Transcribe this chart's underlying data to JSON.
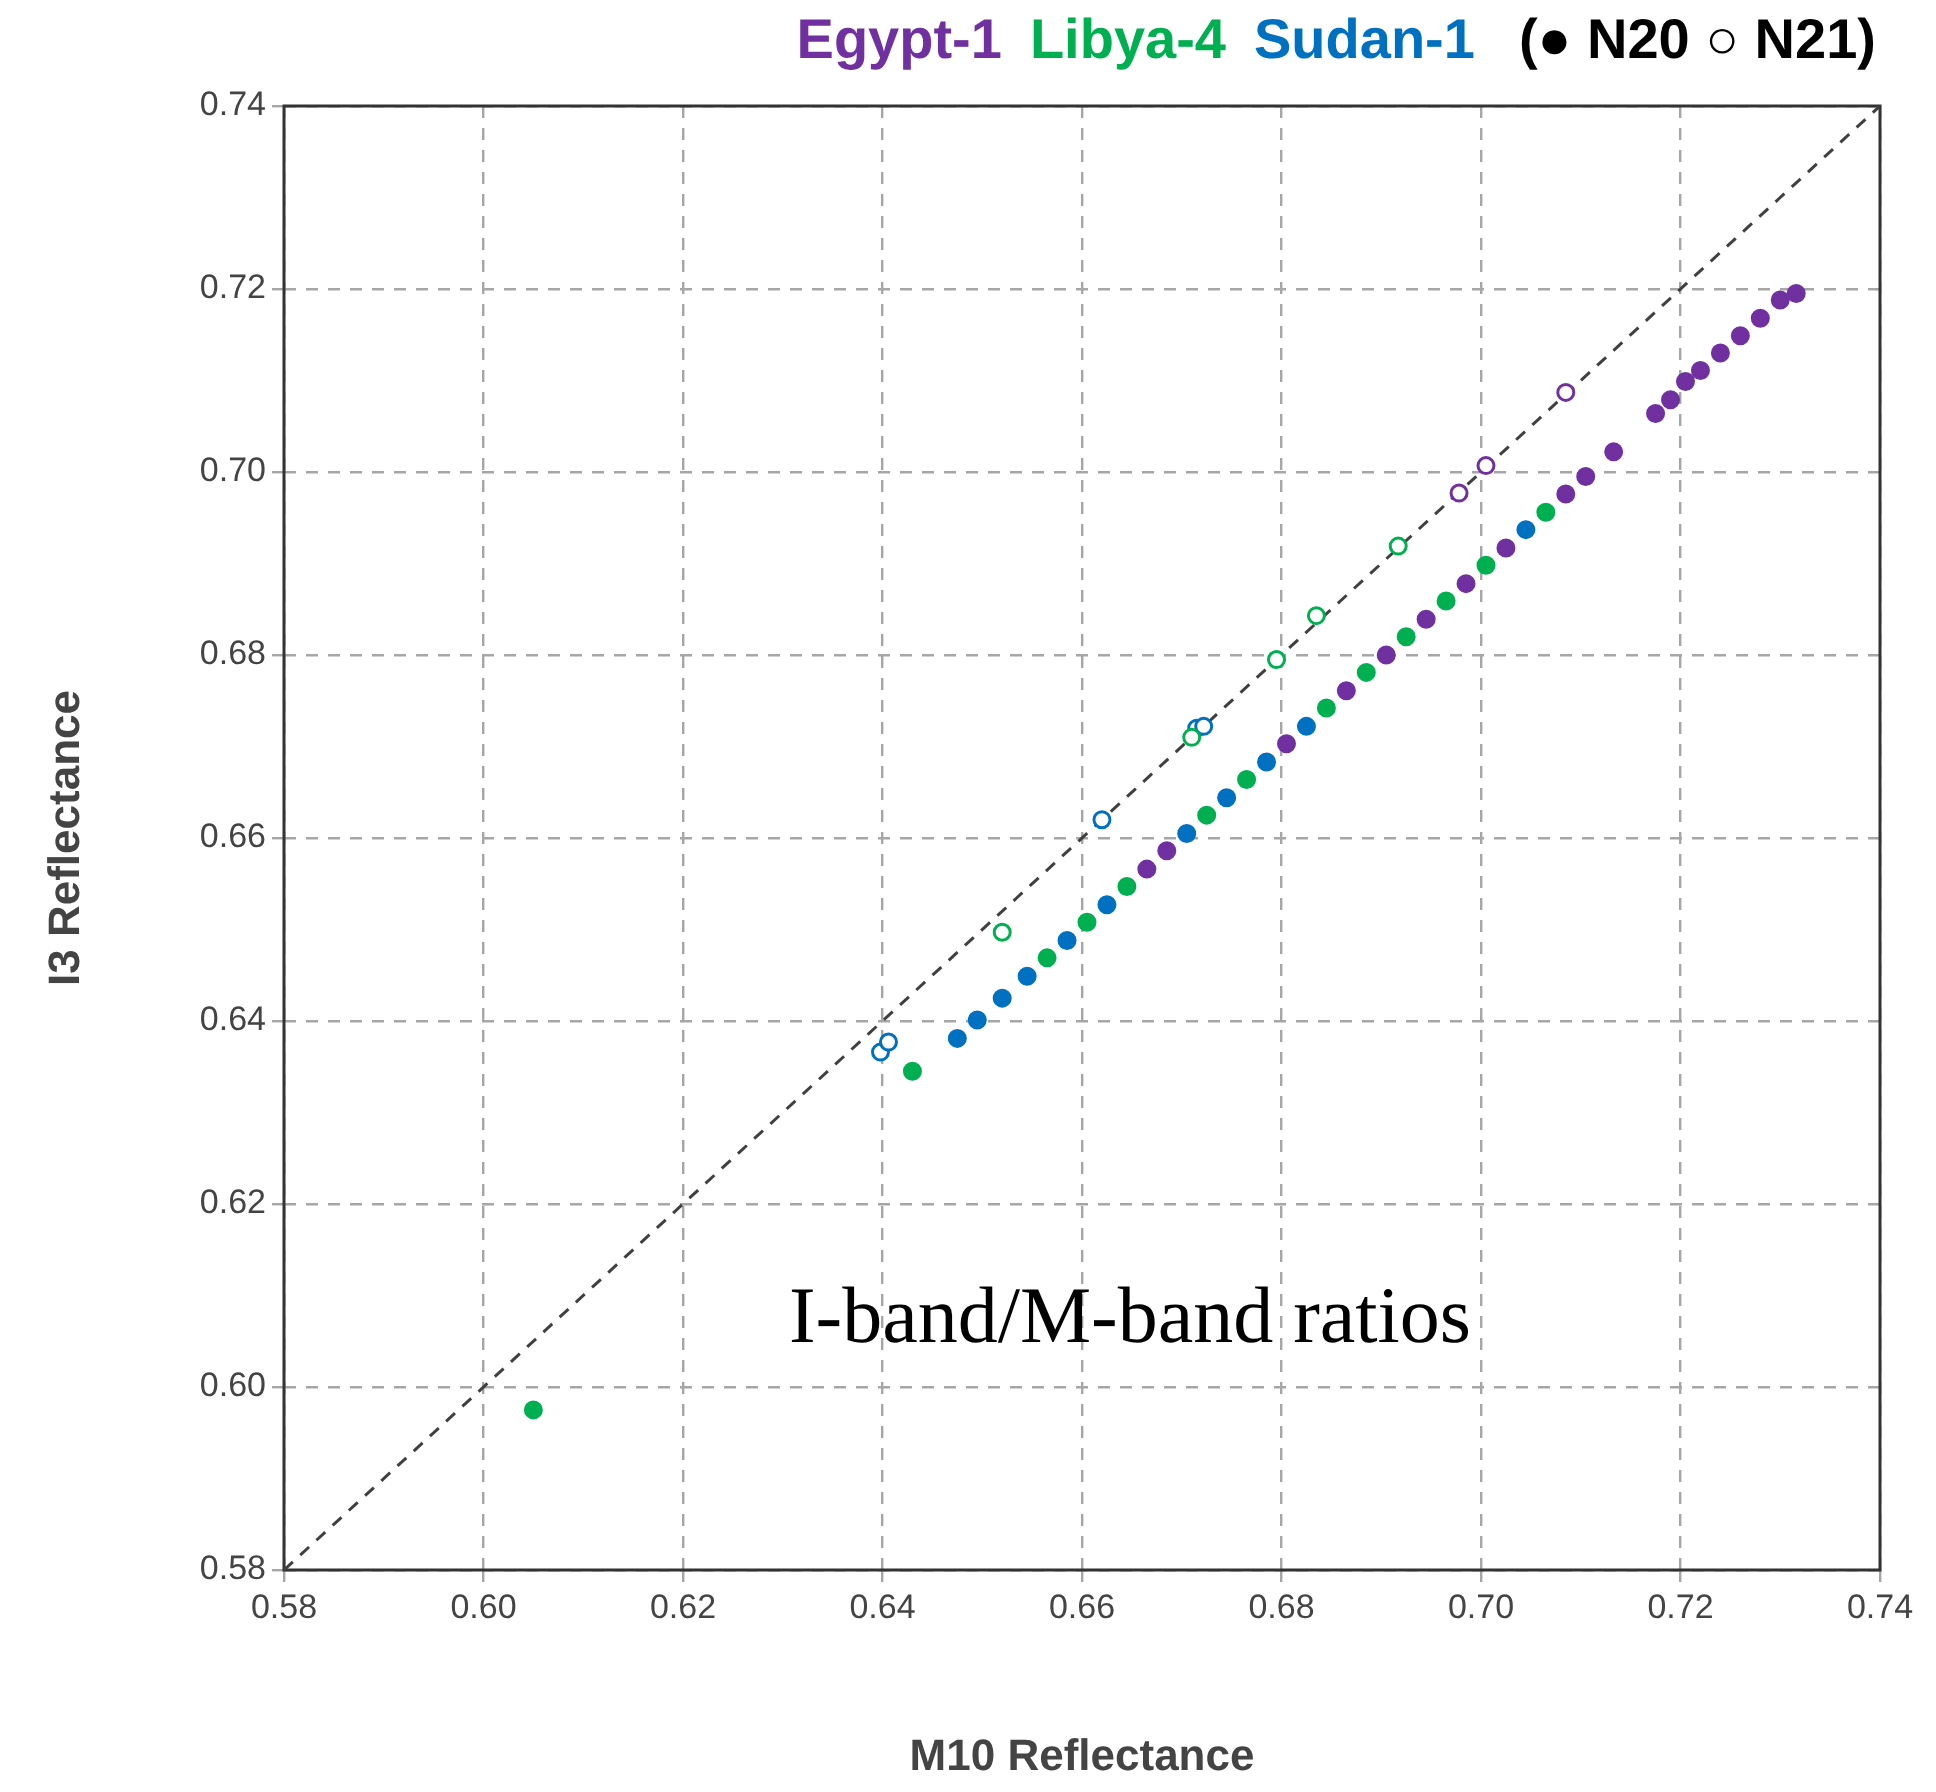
{
  "chart_data": {
    "type": "scatter",
    "xlabel": "M10 Reflectance",
    "ylabel": "I3 Reflectance",
    "legend": "top",
    "legend_title": "(● N20  ○ N21)",
    "annotations": [
      "I-band/M-band ratios"
    ],
    "xlim": [
      0.58,
      0.74
    ],
    "ylim": [
      0.58,
      0.74
    ],
    "xticks": [
      0.58,
      {
        "value": 0.6,
        "label": "0.60"
      },
      0.62,
      0.64,
      0.66,
      0.68,
      {
        "value": 0.7,
        "label": "0.70"
      },
      0.72,
      0.74
    ],
    "yticks": [
      0.58,
      {
        "value": 0.6,
        "label": "0.60"
      },
      0.62,
      0.64,
      0.66,
      0.68,
      {
        "value": 0.7,
        "label": "0.70"
      },
      0.72,
      0.74
    ],
    "grid": true,
    "marker": "circle",
    "series": [
      {
        "type": "line",
        "color": "#404040",
        "marker": "none",
        "line_style": "dashed",
        "x": [
          0.58,
          0.74
        ],
        "values": [
          0.58,
          0.74
        ]
      },
      {
        "name": "Egypt-1",
        "color": "#7030a0",
        "x": [
          0.6665,
          0.6685,
          0.6805,
          0.6865,
          0.6905,
          0.6945,
          0.6985,
          0.7025,
          0.7085,
          0.7105,
          0.7133,
          0.7175,
          0.719,
          0.7205,
          0.722,
          0.724,
          0.726,
          0.728,
          0.73,
          0.7316
        ],
        "values": [
          0.6566,
          0.6586,
          0.6703,
          0.6761,
          0.68,
          0.6839,
          0.6878,
          0.6917,
          0.6976,
          0.6995,
          0.7022,
          0.7064,
          0.7079,
          0.7099,
          0.7111,
          0.713,
          0.7149,
          0.7168,
          0.7188,
          0.7195
        ]
      },
      {
        "name": "Libya-4",
        "color": "#00b050",
        "x": [
          0.605,
          0.643,
          0.6565,
          0.6605,
          0.6645,
          0.6725,
          0.6765,
          0.6845,
          0.6885,
          0.6925,
          0.6965,
          0.7005,
          0.7065
        ],
        "values": [
          0.5975,
          0.6345,
          0.6469,
          0.6508,
          0.6547,
          0.6625,
          0.6664,
          0.6742,
          0.6781,
          0.682,
          0.6859,
          0.6898,
          0.6956
        ]
      },
      {
        "name": "Sudan-1",
        "color": "#0070c0",
        "x": [
          0.6475,
          0.6495,
          0.652,
          0.6545,
          0.6585,
          0.6625,
          0.6705,
          0.6745,
          0.6785,
          0.6825,
          0.7045
        ],
        "values": [
          0.6381,
          0.6401,
          0.6425,
          0.6449,
          0.6488,
          0.6527,
          0.6605,
          0.6644,
          0.6683,
          0.6722,
          0.6937
        ]
      },
      {
        "color": "#7030a0",
        "x": [
          0.6978,
          0.7005,
          0.7085
        ],
        "values": [
          0.6977,
          0.7007,
          0.7087
        ]
      },
      {
        "color": "#00b050",
        "x": [
          0.652,
          0.671,
          0.6795,
          0.6835,
          0.6917
        ],
        "values": [
          0.6497,
          0.671,
          0.6795,
          0.6843,
          0.6919
        ]
      },
      {
        "color": "#0070c0",
        "x": [
          0.6398,
          0.6406,
          0.662,
          0.6715,
          0.6722
        ],
        "values": [
          0.6366,
          0.6377,
          0.662,
          0.672,
          0.6722
        ]
      }
    ]
  }
}
